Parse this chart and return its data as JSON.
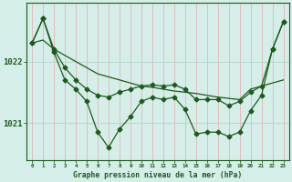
{
  "xlabel": "Graphe pression niveau de la mer (hPa)",
  "x": [
    0,
    1,
    2,
    3,
    4,
    5,
    6,
    7,
    8,
    9,
    10,
    11,
    12,
    13,
    14,
    15,
    16,
    17,
    18,
    19,
    20,
    21,
    22,
    23
  ],
  "line_trend": [
    1022.3,
    1022.35,
    1022.2,
    1022.1,
    1022.0,
    1021.9,
    1021.8,
    1021.75,
    1021.7,
    1021.65,
    1021.6,
    1021.58,
    1021.55,
    1021.52,
    1021.5,
    1021.48,
    1021.45,
    1021.42,
    1021.4,
    1021.38,
    1021.55,
    1021.6,
    1021.65,
    1021.7
  ],
  "line_smooth": [
    1022.3,
    1022.7,
    1022.2,
    1021.9,
    1021.7,
    1021.55,
    1021.45,
    1021.42,
    1021.5,
    1021.55,
    1021.6,
    1021.62,
    1021.6,
    1021.62,
    1021.55,
    1021.38,
    1021.38,
    1021.38,
    1021.28,
    1021.35,
    1021.5,
    1021.6,
    1022.2,
    1022.65
  ],
  "line_detail": [
    1022.3,
    1022.7,
    1022.15,
    1021.7,
    1021.55,
    1021.35,
    1020.85,
    1020.6,
    1020.9,
    1021.1,
    1021.35,
    1021.42,
    1021.38,
    1021.42,
    1021.22,
    1020.82,
    1020.85,
    1020.85,
    1020.78,
    1020.85,
    1021.2,
    1021.45,
    1022.2,
    1022.65
  ],
  "ylim": [
    1020.4,
    1022.95
  ],
  "ytick_positions": [
    1021.0,
    1022.0
  ],
  "ytick_labels": [
    "1021",
    "1022"
  ],
  "bg_color": "#d5eee9",
  "line_color": "#1a5c1a",
  "grid_color_v": "#e8b4b4",
  "grid_color_h": "#b8d8ce",
  "marker_size": 2.5,
  "line_width": 0.9
}
